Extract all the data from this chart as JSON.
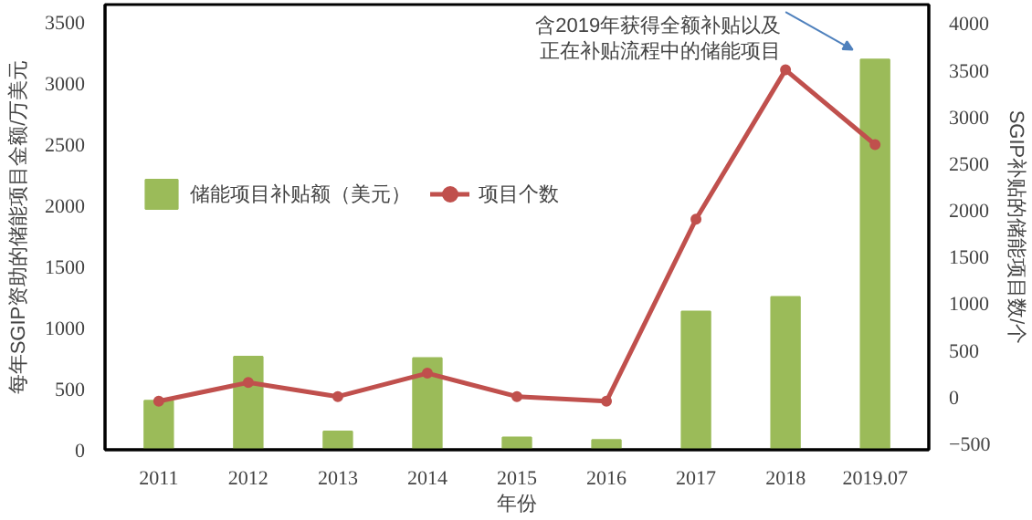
{
  "chart_data": {
    "type": "bar",
    "categories": [
      "2011",
      "2012",
      "2013",
      "2014",
      "2015",
      "2016",
      "2017",
      "2018",
      "2019.07"
    ],
    "xlabel": "年份",
    "ylabel": "每年SGIP资助的储能项目金额/万美元",
    "y2label": "SGIP补贴的储能项目数/个",
    "series": [
      {
        "name": "储能项目补贴额（美元）",
        "color": "#9bbb59",
        "values": [
          400,
          760,
          150,
          750,
          100,
          80,
          1130,
          1250,
          3190
        ]
      },
      {
        "name": "项目个数",
        "type": "line",
        "axis": "y2",
        "color": "#c0504d",
        "marker": "circle",
        "values": [
          -50,
          150,
          0,
          250,
          0,
          -50,
          1900,
          3500,
          2700
        ]
      }
    ],
    "ylim": [
      0,
      3640
    ],
    "yticks": [
      0,
      500,
      1000,
      1500,
      2000,
      2500,
      3000,
      3500
    ],
    "y2lim": [
      -570,
      4200
    ],
    "y2ticks": [
      -500,
      0,
      500,
      1000,
      1500,
      2000,
      2500,
      3000,
      3500,
      4000
    ],
    "annotations": [
      "含2019年获得全额补贴以及",
      "正在补贴流程中的储能项目"
    ],
    "legend": "left",
    "grid": false
  }
}
